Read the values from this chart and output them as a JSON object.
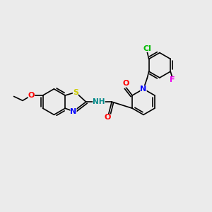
{
  "background_color": "#ebebeb",
  "bond_color": "#000000",
  "atom_colors": {
    "O": "#ff0000",
    "N": "#0000ff",
    "S": "#cccc00",
    "Cl": "#00bb00",
    "F": "#ee00ee",
    "H": "#008888",
    "C": "#000000"
  },
  "font_size_atom": 8,
  "fig_width": 3.0,
  "fig_height": 3.0,
  "dpi": 100
}
